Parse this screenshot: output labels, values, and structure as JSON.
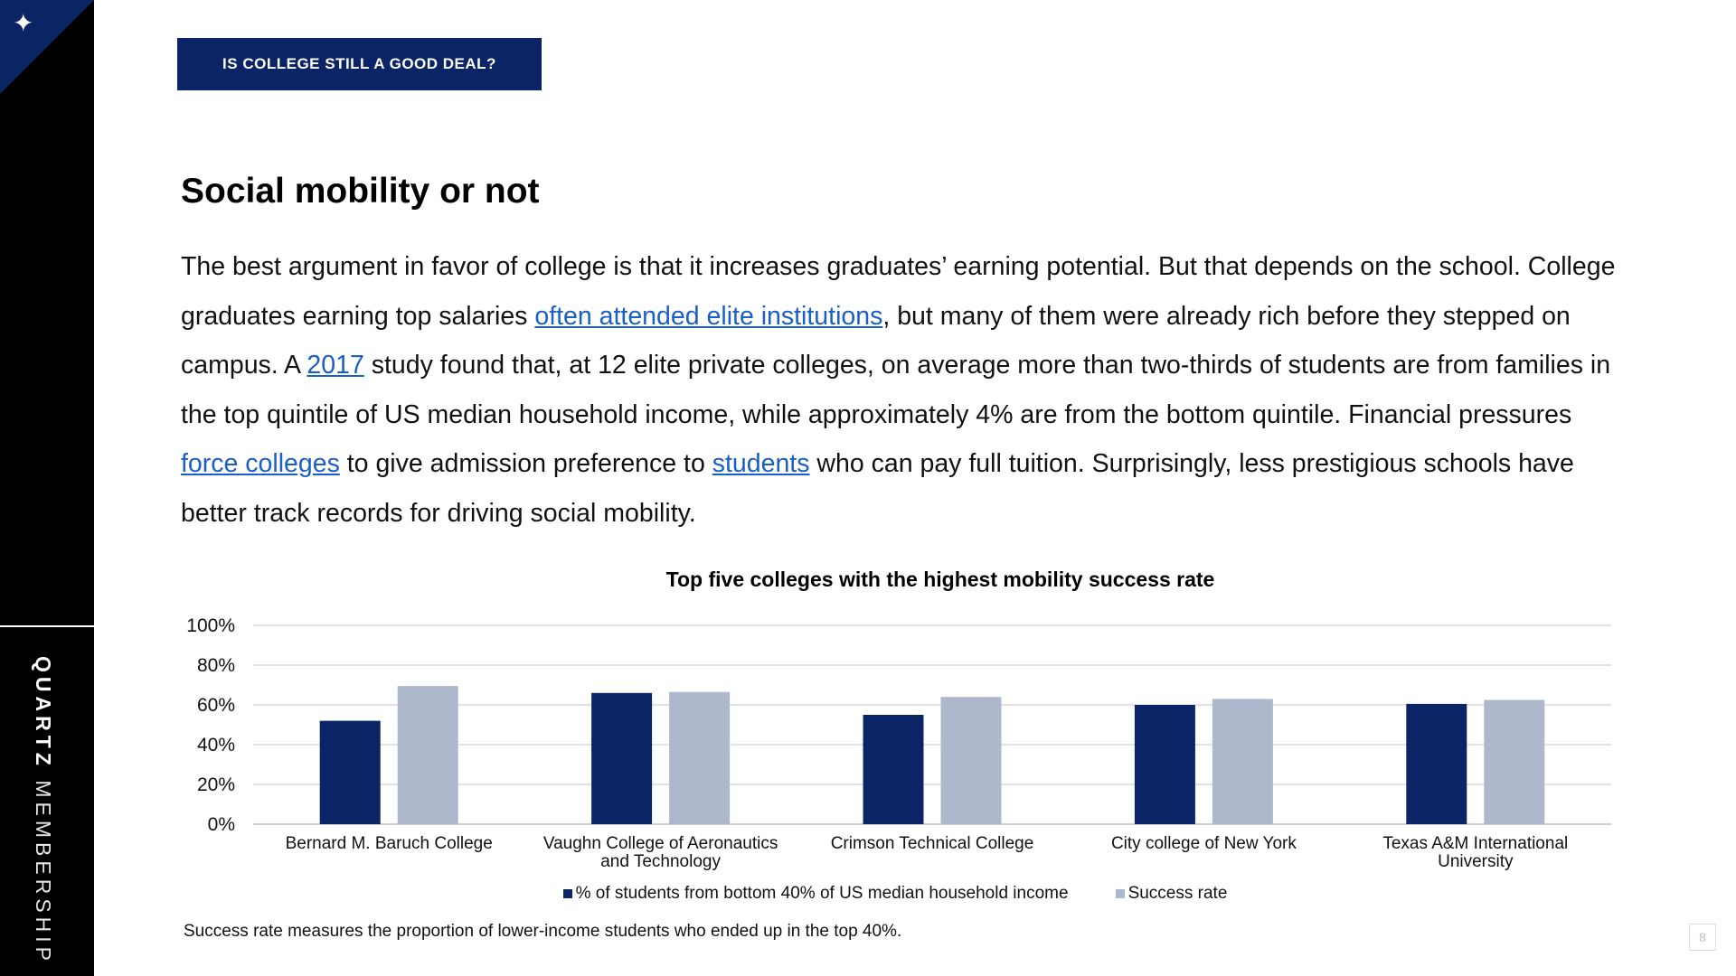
{
  "header": {
    "badge": "IS COLLEGE STILL A GOOD DEAL?"
  },
  "sidebar": {
    "brand_bold": "QUARTZ",
    "brand_light": " MEMBERSHIP",
    "logo_icon": "star-icon"
  },
  "title": "Social mobility or not",
  "body": {
    "s1": "The best argument in favor of college is that it increases graduates’ earning potential. But that depends on the school. College graduates earning top salaries ",
    "link1": "often attended elite institutions",
    "s2": ", but many of them were already rich before they stepped on campus. A ",
    "link2": "2017",
    "s3": " study found that, at 12 elite private colleges, on average more than two-thirds of students are from families in the top quintile of US median household income, while approximately 4% are from the bottom quintile. Financial pressures ",
    "link3": "force colleges",
    "s4": " to give admission preference to ",
    "link4": "students",
    "s5": " who can pay full tuition. Surprisingly, less prestigious schools have better track records for driving social mobility."
  },
  "chart_data": {
    "type": "bar",
    "title": "Top five colleges with the highest mobility success rate",
    "categories": [
      [
        "Bernard M. Baruch College"
      ],
      [
        "Vaughn College of Aeronautics",
        "and Technology"
      ],
      [
        "Crimson Technical College"
      ],
      [
        "City college of New York"
      ],
      [
        "Texas A&M International",
        "University"
      ]
    ],
    "series": [
      {
        "name": "% of students from bottom 40% of US median household income",
        "color": "#0b2465",
        "values": [
          52,
          66,
          55,
          60,
          60.5
        ]
      },
      {
        "name": "Success rate",
        "color": "#adb8cd",
        "values": [
          69.5,
          66.5,
          64,
          63,
          62.5
        ]
      }
    ],
    "ylim": [
      0,
      100
    ],
    "yticks": [
      "0%",
      "20%",
      "40%",
      "60%",
      "80%",
      "100%"
    ],
    "grid": true,
    "legend_position": "bottom"
  },
  "footnote": "Success rate measures the proportion of lower-income students who ended up in the top 40%.",
  "page_number": "8"
}
